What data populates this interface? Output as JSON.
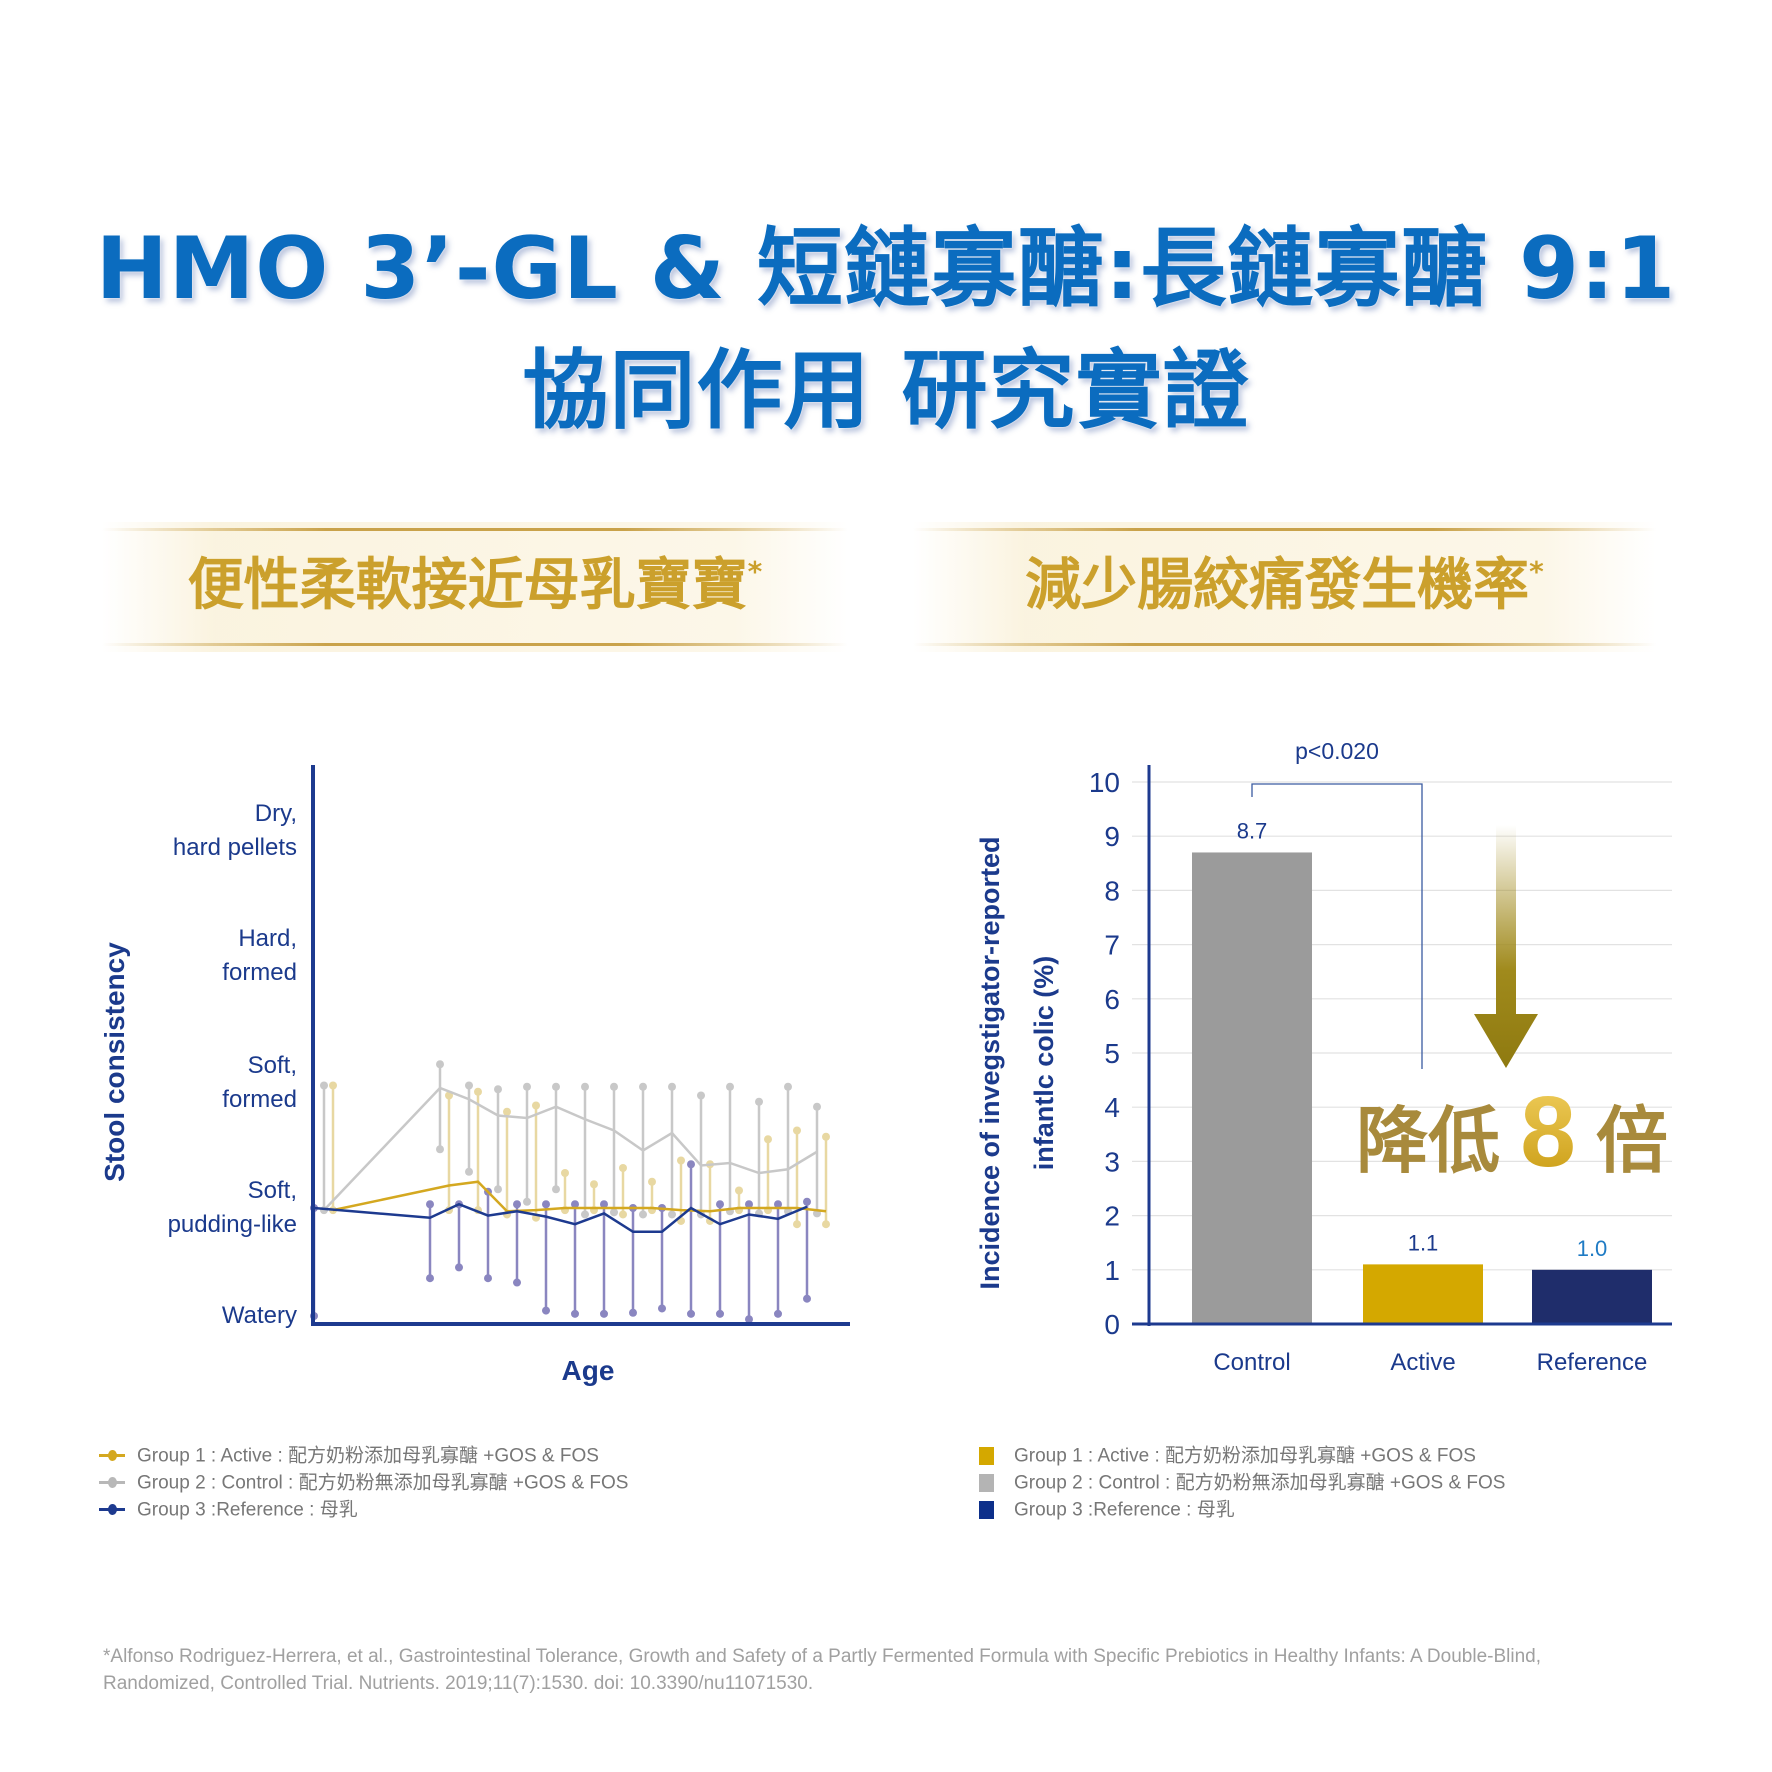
{
  "title": {
    "line1": "HMO 3’-GL & 短鏈寡醣:長鏈寡醣 9:1",
    "line2": "協同作用 研究實證"
  },
  "banners": [
    {
      "text": "便性柔軟接近母乳寶寶",
      "mark": "*"
    },
    {
      "text": "減少腸絞痛發生機率",
      "mark": "*"
    }
  ],
  "colors": {
    "title": "#0b6cbf",
    "navy": "#1b3a8c",
    "gold": "#cba02c",
    "control": "#9b9b9b",
    "active": "#d4a800",
    "reference": "#1f2d6b"
  },
  "chart_data": [
    {
      "type": "line",
      "ylabel": "Stool consistency",
      "xlabel": "Age",
      "y_categories": [
        "Watery",
        "Soft,\npudding-like",
        "Soft,\nformed",
        "Hard,\nformed",
        "Dry,\nhard pellets"
      ],
      "y_category_labels": [
        [
          "Watery"
        ],
        [
          "Soft,",
          "pudding-like"
        ],
        [
          "Soft,",
          "formed"
        ],
        [
          "Hard,",
          "formed"
        ],
        [
          "Dry,",
          "hard pellets"
        ]
      ],
      "ylim": [
        1,
        5
      ],
      "x": [
        0,
        4,
        5,
        6,
        7,
        8,
        9,
        10,
        11,
        12,
        13,
        14,
        15,
        16,
        17
      ],
      "series": [
        {
          "name": "Group 2 : Control",
          "color": "#c8c8c8",
          "error_color": "#c8c8c8",
          "values": [
            1.98,
            2.96,
            2.87,
            2.74,
            2.72,
            2.81,
            2.71,
            2.62,
            2.46,
            2.6,
            2.34,
            2.36,
            2.28,
            2.31,
            2.45
          ],
          "upper": [
            2.98,
            3.15,
            2.98,
            2.95,
            2.97,
            2.97,
            2.97,
            2.97,
            2.97,
            2.97,
            2.9,
            2.97,
            2.85,
            2.97,
            2.81
          ],
          "lower": [
            1.98,
            2.47,
            2.29,
            2.15,
            2.05,
            2.15,
            1.94,
            1.96,
            1.94,
            1.94,
            1.94,
            1.97,
            1.95,
            1.97,
            1.95
          ]
        },
        {
          "name": "Group 1 : Active",
          "color": "#d4a820",
          "error_color": "#e8d8a2",
          "values": [
            1.98,
            2.18,
            2.21,
            1.97,
            1.98,
            2.0,
            2.0,
            2.0,
            2.0,
            1.98,
            1.97,
            2.0,
            2.0,
            2.0,
            1.97
          ],
          "upper": [
            2.98,
            2.9,
            2.93,
            2.77,
            2.82,
            2.28,
            2.19,
            2.32,
            2.21,
            2.38,
            2.35,
            2.14,
            2.55,
            2.62,
            2.57
          ],
          "lower": [
            1.98,
            1.98,
            1.98,
            1.94,
            1.91,
            1.98,
            1.98,
            1.94,
            1.98,
            1.88,
            1.88,
            1.98,
            1.98,
            1.85,
            1.85
          ]
        },
        {
          "name": "Group 3 : Reference",
          "color": "#1d3a8f",
          "error_color": "#8a86c0",
          "values": [
            2.0,
            1.91,
            2.03,
            1.93,
            1.97,
            1.92,
            1.85,
            1.95,
            1.78,
            1.78,
            2.0,
            1.85,
            1.94,
            1.9,
            2.01
          ],
          "upper": [
            2.0,
            2.03,
            2.03,
            2.13,
            2.03,
            2.03,
            2.03,
            2.03,
            2.0,
            2.0,
            2.35,
            2.03,
            2.03,
            2.03,
            2.05
          ],
          "lower": [
            1.0,
            1.35,
            1.45,
            1.35,
            1.31,
            1.05,
            1.02,
            1.02,
            1.03,
            1.07,
            1.02,
            1.02,
            0.97,
            1.02,
            1.16
          ]
        }
      ],
      "legend": [
        {
          "label": "Group 1 : Active : 配方奶粉添加母乳寡醣 +GOS & FOS",
          "color": "#d4a820"
        },
        {
          "label": "Group 2 : Control : 配方奶粉無添加母乳寡醣 +GOS & FOS",
          "color": "#b8b8b8"
        },
        {
          "label": "Group 3 :Reference : 母乳",
          "color": "#1d3a8f"
        }
      ],
      "legend_placement": "bottom-left"
    },
    {
      "type": "bar",
      "ylabel_lines": [
        "Incidence of invegstigator-reported",
        "infantlc colic (%)"
      ],
      "categories": [
        "Control",
        "Active",
        "Reference"
      ],
      "values": [
        8.7,
        1.1,
        1.0
      ],
      "value_labels": [
        "8.7",
        "1.1",
        "1.0"
      ],
      "colors": [
        "#9b9b9b",
        "#d4a800",
        "#1f2d6b"
      ],
      "ylim": [
        0,
        10
      ],
      "yticks": [
        "0",
        "1",
        "2",
        "3",
        "4",
        "5",
        "6",
        "7",
        "8",
        "9",
        "10"
      ],
      "grid": true,
      "annotation": "p<0.020",
      "callout": {
        "pre": "降低",
        "num": "8",
        "post": "倍"
      },
      "legend": [
        {
          "label": "Group 1 : Active : 配方奶粉添加母乳寡醣 +GOS & FOS",
          "color": "#d4a800"
        },
        {
          "label": "Group 2 : Control : 配方奶粉無添加母乳寡醣 +GOS & FOS",
          "color": "#b4b4b4"
        },
        {
          "label": "Group 3 :Reference : 母乳",
          "color": "#0d2f8a"
        }
      ],
      "legend_placement": "bottom-left"
    }
  ],
  "footnote": {
    "line1": "*Alfonso Rodriguez-Herrera, et al., Gastrointestinal Tolerance, Growth and Safety of a Partly Fermented Formula with Specific Prebiotics in Healthy Infants: A Double-Blind,",
    "line2": "Randomized, Controlled Trial. Nutrients. 2019;11(7):1530. doi: 10.3390/nu11071530."
  }
}
